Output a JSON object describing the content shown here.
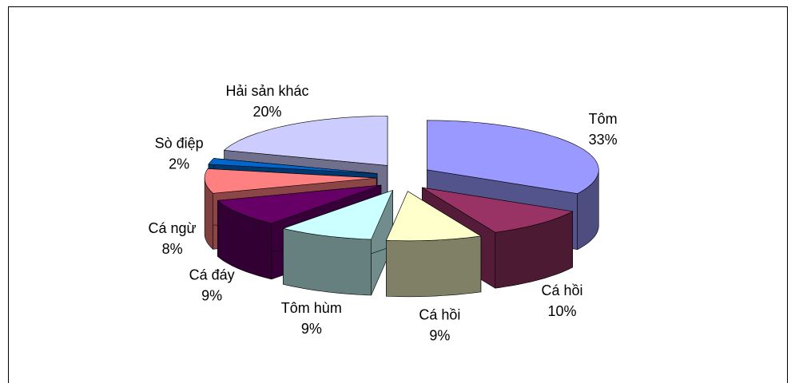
{
  "chart_data": {
    "type": "pie3d",
    "categories": [
      "Tôm",
      "Cá hồi",
      "Cá hồi",
      "Tôm hùm",
      "Cá đáy",
      "Cá ngừ",
      "Sò điệp",
      "Hải sản khác"
    ],
    "values": [
      33,
      10,
      9,
      9,
      9,
      8,
      2,
      20
    ],
    "value_labels": [
      "33%",
      "10%",
      "9%",
      "9%",
      "9%",
      "8%",
      "2%",
      "20%"
    ],
    "colors": [
      "#9999ff",
      "#993366",
      "#ffffcc",
      "#ccffff",
      "#660066",
      "#ff8080",
      "#0066cc",
      "#ccccff"
    ]
  }
}
